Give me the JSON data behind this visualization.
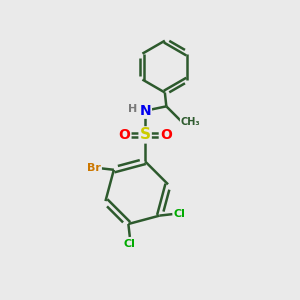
{
  "background_color": "#eaeaea",
  "bond_color": "#2d5a2d",
  "bond_width": 1.8,
  "atom_colors": {
    "C": "#2d5a2d",
    "H": "#7a7a7a",
    "N": "#0000ee",
    "S": "#cccc00",
    "O": "#ff0000",
    "Br": "#cc7700",
    "Cl": "#00aa00"
  },
  "font_size": 9,
  "figsize": [
    3.0,
    3.0
  ],
  "dpi": 100
}
